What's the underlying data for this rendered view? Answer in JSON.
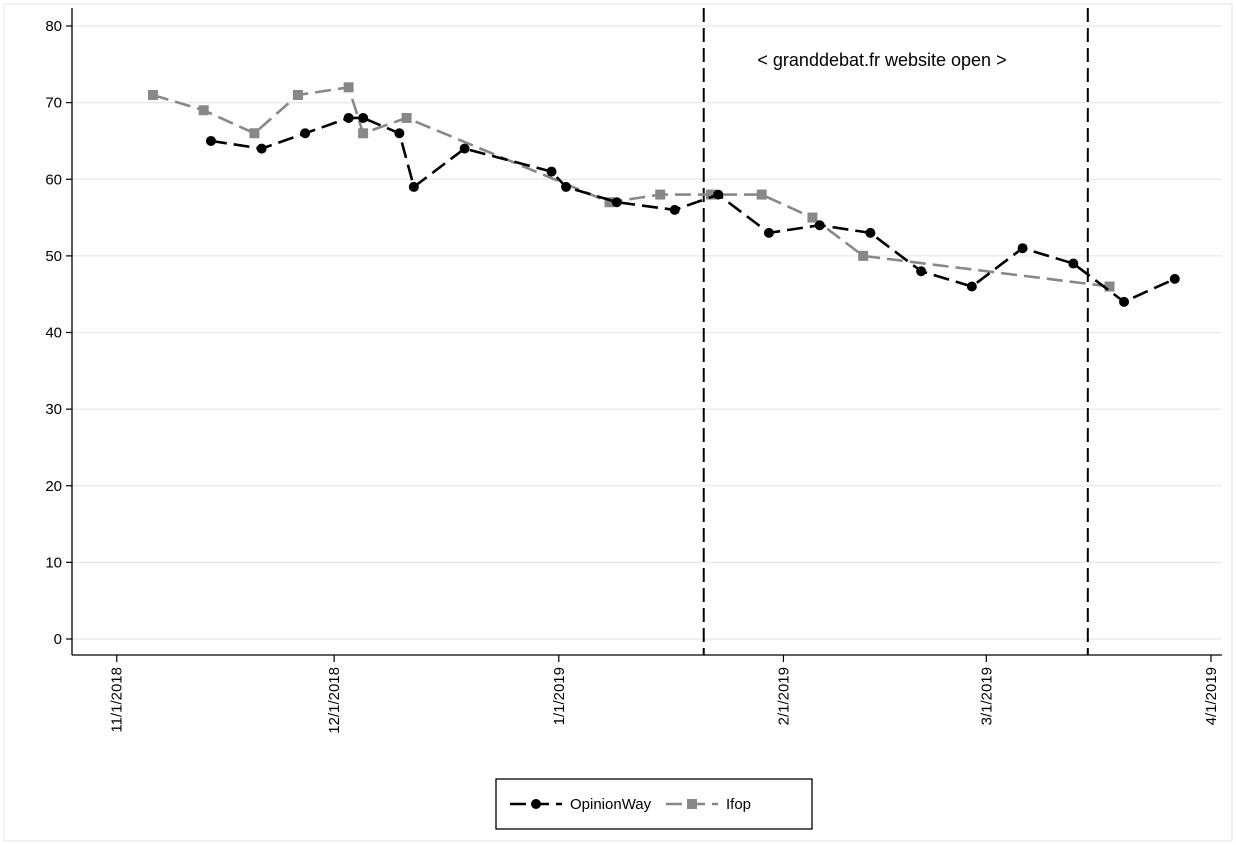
{
  "chart_data": {
    "type": "line",
    "title": "",
    "xlabel": "",
    "ylabel": "",
    "x_axis": {
      "type": "date",
      "range": [
        "2018-10-29",
        "2019-04-01"
      ],
      "ticks": [
        {
          "date": "2018-11-01",
          "label": "11/1/2018"
        },
        {
          "date": "2018-12-01",
          "label": "12/1/2018"
        },
        {
          "date": "2019-01-01",
          "label": "1/1/2019"
        },
        {
          "date": "2019-02-01",
          "label": "2/1/2019"
        },
        {
          "date": "2019-03-01",
          "label": "3/1/2019"
        },
        {
          "date": "2019-04-01",
          "label": "4/1/2019"
        }
      ]
    },
    "y_axis": {
      "range": [
        -2,
        82
      ],
      "ticks": [
        0,
        10,
        20,
        30,
        40,
        50,
        60,
        70,
        80
      ],
      "grid": true
    },
    "series": [
      {
        "name": "OpinionWay",
        "color": "#000000",
        "marker": "circle",
        "line_style": "dashed",
        "points": [
          {
            "x": "2018-11-14",
            "y": 65
          },
          {
            "x": "2018-11-21",
            "y": 64
          },
          {
            "x": "2018-11-27",
            "y": 66
          },
          {
            "x": "2018-12-03",
            "y": 68
          },
          {
            "x": "2018-12-05",
            "y": 68
          },
          {
            "x": "2018-12-10",
            "y": 66
          },
          {
            "x": "2018-12-12",
            "y": 59
          },
          {
            "x": "2018-12-19",
            "y": 64
          },
          {
            "x": "2018-12-31",
            "y": 61
          },
          {
            "x": "2019-01-02",
            "y": 59
          },
          {
            "x": "2019-01-09",
            "y": 57
          },
          {
            "x": "2019-01-17",
            "y": 56
          },
          {
            "x": "2019-01-23",
            "y": 58
          },
          {
            "x": "2019-01-30",
            "y": 53
          },
          {
            "x": "2019-02-06",
            "y": 54
          },
          {
            "x": "2019-02-13",
            "y": 53
          },
          {
            "x": "2019-02-20",
            "y": 48
          },
          {
            "x": "2019-02-27",
            "y": 46
          },
          {
            "x": "2019-03-06",
            "y": 51
          },
          {
            "x": "2019-03-13",
            "y": 49
          },
          {
            "x": "2019-03-20",
            "y": 44
          },
          {
            "x": "2019-03-27",
            "y": 47
          }
        ]
      },
      {
        "name": "Ifop",
        "color": "#888888",
        "marker": "square",
        "line_style": "dashed",
        "points": [
          {
            "x": "2018-11-06",
            "y": 71
          },
          {
            "x": "2018-11-13",
            "y": 69
          },
          {
            "x": "2018-11-20",
            "y": 66
          },
          {
            "x": "2018-11-26",
            "y": 71
          },
          {
            "x": "2018-12-03",
            "y": 72
          },
          {
            "x": "2018-12-05",
            "y": 66
          },
          {
            "x": "2018-12-11",
            "y": 68
          },
          {
            "x": "2019-01-08",
            "y": 57
          },
          {
            "x": "2019-01-15",
            "y": 58
          },
          {
            "x": "2019-01-22",
            "y": 58
          },
          {
            "x": "2019-01-29",
            "y": 58
          },
          {
            "x": "2019-02-05",
            "y": 55
          },
          {
            "x": "2019-02-12",
            "y": 50
          },
          {
            "x": "2019-03-18",
            "y": 46
          }
        ]
      }
    ],
    "reference_lines": [
      {
        "date": "2019-01-21",
        "style": "dashed",
        "color": "#000000"
      },
      {
        "date": "2019-03-15",
        "style": "dashed",
        "color": "#000000"
      }
    ],
    "annotation": {
      "text": "< granddebat.fr website open >"
    },
    "legend": {
      "placement": "bottom-center",
      "entries": [
        {
          "series": 0,
          "label": "OpinionWay"
        },
        {
          "series": 1,
          "label": "Ifop"
        }
      ]
    }
  }
}
